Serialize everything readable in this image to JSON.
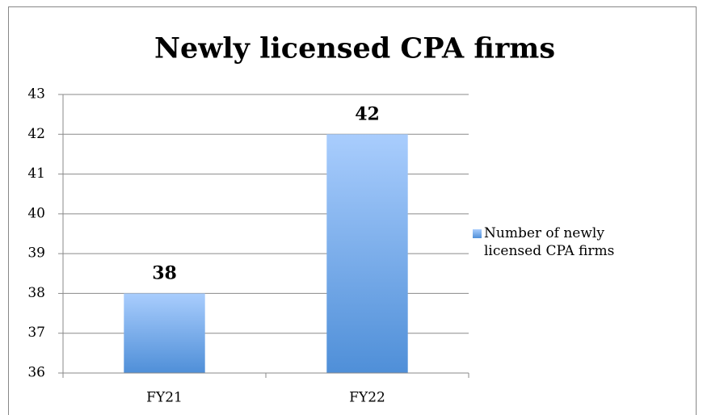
{
  "chart_data": {
    "type": "bar",
    "title": "Newly licensed CPA firms",
    "categories": [
      "FY21",
      "FY22"
    ],
    "series": [
      {
        "name": "Number of newly licensed CPA firms",
        "color": "#4f8fd8",
        "values": [
          38,
          42
        ]
      }
    ],
    "ylim": [
      36,
      43
    ],
    "yticks": [
      36,
      37,
      38,
      39,
      40,
      41,
      42,
      43
    ],
    "grid": true,
    "legend": "right"
  }
}
